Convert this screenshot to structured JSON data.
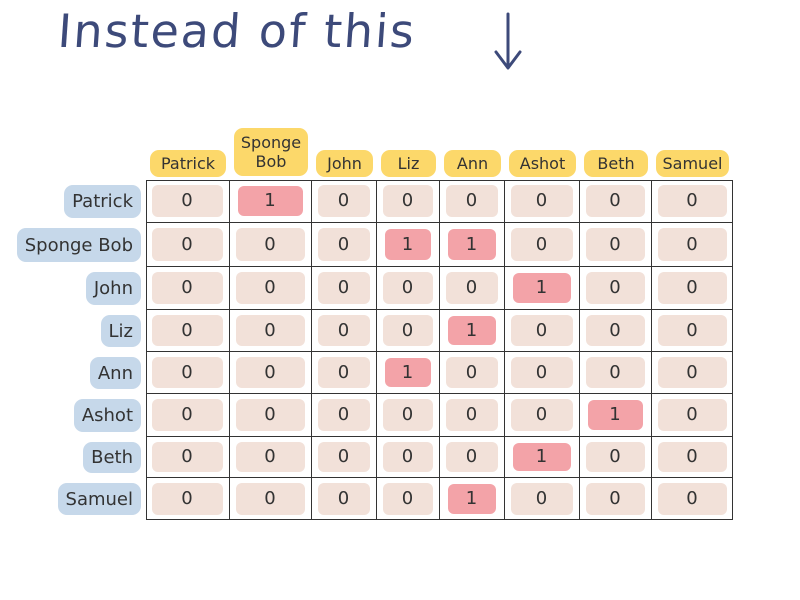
{
  "title": "Instead of this",
  "colors": {
    "title": "#3d4a7a",
    "column_header_highlight": "#fcd86a",
    "row_header_highlight": "#c6d8ea",
    "cell_zero_fill": "#f2e1d9",
    "cell_one_fill": "#f3a3a8",
    "grid_line": "#333333"
  },
  "icons": {
    "title_arrow": "arrow-down-icon"
  },
  "columns": [
    "Patrick",
    "Sponge Bob",
    "John",
    "Liz",
    "Ann",
    "Ashot",
    "Beth",
    "Samuel"
  ],
  "rows": [
    "Patrick",
    "Sponge Bob",
    "John",
    "Liz",
    "Ann",
    "Ashot",
    "Beth",
    "Samuel"
  ],
  "matrix": [
    [
      "0",
      "1",
      "0",
      "0",
      "0",
      "0",
      "0",
      "0"
    ],
    [
      "0",
      "0",
      "0",
      "1",
      "1",
      "0",
      "0",
      "0"
    ],
    [
      "0",
      "0",
      "0",
      "0",
      "0",
      "1",
      "0",
      "0"
    ],
    [
      "0",
      "0",
      "0",
      "0",
      "1",
      "0",
      "0",
      "0"
    ],
    [
      "0",
      "0",
      "0",
      "1",
      "0",
      "0",
      "0",
      "0"
    ],
    [
      "0",
      "0",
      "0",
      "0",
      "0",
      "0",
      "1",
      "0"
    ],
    [
      "0",
      "0",
      "0",
      "0",
      "0",
      "1",
      "0",
      "0"
    ],
    [
      "0",
      "0",
      "0",
      "0",
      "1",
      "0",
      "0",
      "0"
    ]
  ]
}
